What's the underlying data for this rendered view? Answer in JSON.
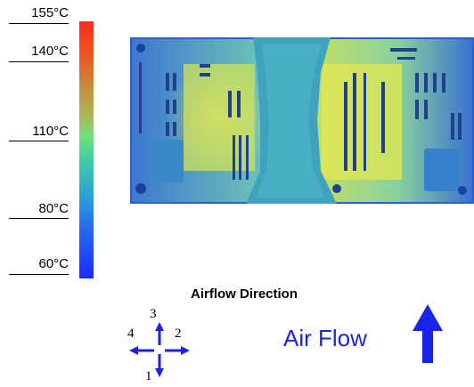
{
  "temperature_scale": {
    "labels": [
      "155°C",
      "140°C",
      "110°C",
      "80°C",
      "60°C"
    ],
    "color_top": "#ff2a1a",
    "color_mid": "#6fe27a",
    "color_bottom": "#1b2cff"
  },
  "airflow": {
    "title": "Airflow Direction",
    "directions": [
      "1",
      "2",
      "3",
      "4"
    ],
    "label": "Air Flow",
    "arrow_color": "#1a22ee"
  },
  "thermal_image": {
    "icon": "thermal-board-image"
  }
}
